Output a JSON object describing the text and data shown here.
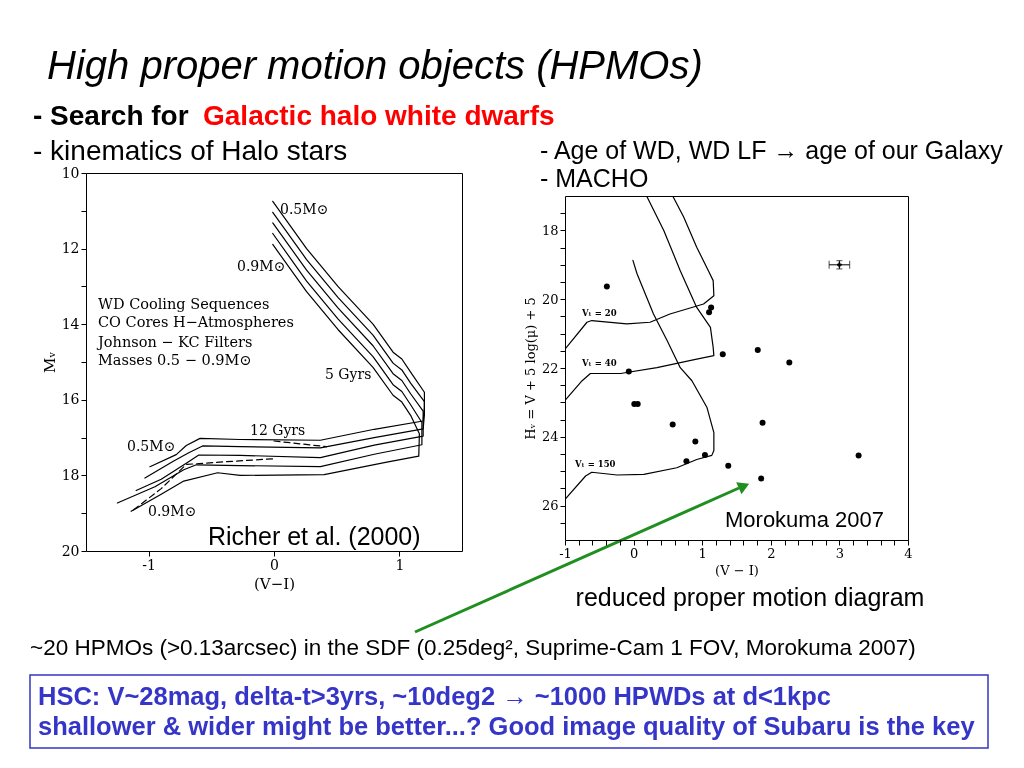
{
  "chart_data": [
    {
      "type": "other",
      "title": "High proper motion objects (HPMOs)",
      "annotations": [
        "- Search for",
        "Galactic halo white dwarfs",
        "~20 HPMOs (>0.13arcsec) in the SDF (0.25deg², Suprime-Cam 1 FOV, Morokuma 2007)",
        "HSC: V~28mag, delta-t>3yrs, ~10deg2 → ~1000 HPWDs at d<1kpc",
        "shallower & wider might be better...? Good image quality of Subaru is the key"
      ]
    },
    {
      "type": "line",
      "title": "- kinematics of Halo stars",
      "xlabel": "(V−I)",
      "ylabel": "Mᵥ",
      "xlim": [
        -1.5,
        1.5
      ],
      "xticks": [
        -1,
        0,
        1
      ],
      "ylim": [
        20,
        10
      ],
      "yticks": [
        10,
        {
          "value": 11,
          "label": null
        },
        12,
        {
          "value": 13,
          "label": null
        },
        14,
        {
          "value": 15,
          "label": null
        },
        16,
        {
          "value": 17,
          "label": null
        },
        18,
        {
          "value": 19,
          "label": null
        },
        20
      ],
      "line_style": "solid",
      "series": [
        {
          "color": "#000000",
          "x": [
            -0.01,
            0.26,
            0.51,
            0.79,
            0.95,
            1.02,
            1.09,
            1.2,
            1.2,
            1.19,
            0.8,
            0.37,
            -0.27,
            -0.59,
            -0.7,
            -0.78,
            -0.99
          ],
          "values": [
            10.75,
            12.0,
            13.0,
            14.0,
            14.74,
            14.92,
            15.27,
            15.8,
            16.2,
            16.56,
            16.78,
            17.07,
            17.05,
            17.02,
            17.21,
            17.45,
            17.77
          ]
        },
        {
          "color": "#000000",
          "x": [
            -0.01,
            0.26,
            0.51,
            0.79,
            0.95,
            1.02,
            1.09,
            1.2,
            1.2,
            1.19,
            0.8,
            0.37,
            -0.27,
            -0.57,
            -0.68,
            -0.8,
            -1.03
          ],
          "values": [
            11.04,
            12.29,
            13.29,
            14.29,
            15.03,
            15.21,
            15.56,
            16.05,
            16.4,
            16.77,
            17.0,
            17.27,
            17.24,
            17.22,
            17.4,
            17.62,
            18.07
          ]
        },
        {
          "color": "#000000",
          "x": [
            -0.01,
            0.26,
            0.51,
            0.79,
            0.95,
            1.02,
            1.09,
            1.19,
            1.19,
            0.8,
            0.37,
            -0.27,
            -0.6,
            -0.7,
            -0.9,
            -1.1
          ],
          "values": [
            11.32,
            12.57,
            13.57,
            14.57,
            15.31,
            15.49,
            15.84,
            16.3,
            16.96,
            17.2,
            17.53,
            17.47,
            17.46,
            17.68,
            18.1,
            18.4
          ]
        },
        {
          "color": "#000000",
          "x": [
            -0.01,
            0.26,
            0.51,
            0.79,
            0.95,
            1.02,
            1.09,
            1.18,
            1.18,
            0.8,
            0.37,
            -0.27,
            -0.62,
            -0.72,
            -0.95,
            -1.25
          ],
          "values": [
            11.6,
            12.86,
            13.86,
            14.86,
            15.6,
            15.78,
            16.13,
            16.6,
            17.19,
            17.44,
            17.77,
            17.74,
            17.72,
            17.85,
            18.3,
            18.73
          ]
        },
        {
          "color": "#000000",
          "x": [
            -0.01,
            0.26,
            0.51,
            0.79,
            0.95,
            1.02,
            1.09,
            1.16,
            1.155,
            0.9,
            0.4,
            -0.27,
            -0.45,
            -0.72,
            -0.9,
            -1.14
          ],
          "values": [
            11.89,
            13.14,
            14.14,
            15.14,
            15.88,
            16.06,
            16.41,
            16.9,
            17.49,
            17.65,
            17.98,
            18.0,
            17.93,
            18.15,
            18.5,
            18.95
          ]
        },
        {
          "color": "#000000",
          "line_style": "dashed",
          "x": [
            -1.12,
            -0.9,
            -0.7,
            -0.3,
            0.0
          ],
          "values": [
            18.91,
            18.35,
            17.71,
            17.62,
            17.56
          ]
        },
        {
          "color": "#000000",
          "line_style": "dashed",
          "x": [
            0.0,
            0.42
          ],
          "values": [
            17.09,
            17.24
          ]
        }
      ],
      "annotations": [
        "0.5M⊙",
        "0.9M⊙",
        "WD Cooling Sequences",
        "CO Cores H−Atmospheres",
        "Johnson − KC Filters",
        "Masses 0.5 − 0.9M⊙",
        "5 Gyrs",
        "12 Gyrs",
        "0.5M⊙",
        "0.9M⊙",
        "Richer et al. (2000)"
      ]
    },
    {
      "type": "scatter",
      "title": "- Age of WD, WD LF → age of our Galaxy",
      "subtitle": "- MACHO",
      "xlabel": "(V − I)",
      "ylabel": "Hᵥ = V + 5 log(μ) + 5",
      "xlim": [
        -1,
        4
      ],
      "xticks": [
        -1,
        {
          "value": -0.8,
          "label": null
        },
        {
          "value": -0.6,
          "label": null
        },
        {
          "value": -0.4,
          "label": null
        },
        {
          "value": -0.2,
          "label": null
        },
        0,
        {
          "value": 0.2,
          "label": null
        },
        {
          "value": 0.4,
          "label": null
        },
        {
          "value": 0.6,
          "label": null
        },
        {
          "value": 0.8,
          "label": null
        },
        1,
        {
          "value": 1.2,
          "label": null
        },
        {
          "value": 1.4,
          "label": null
        },
        {
          "value": 1.6,
          "label": null
        },
        {
          "value": 1.8,
          "label": null
        },
        2,
        {
          "value": 2.2,
          "label": null
        },
        {
          "value": 2.4,
          "label": null
        },
        {
          "value": 2.6,
          "label": null
        },
        {
          "value": 2.8,
          "label": null
        },
        3,
        {
          "value": 3.2,
          "label": null
        },
        {
          "value": 3.4,
          "label": null
        },
        {
          "value": 3.6,
          "label": null
        },
        {
          "value": 3.8,
          "label": null
        },
        4
      ],
      "ylim": [
        27,
        17
      ],
      "yticks": [
        {
          "value": 17.5,
          "label": null
        },
        18,
        {
          "value": 18.5,
          "label": null
        },
        {
          "value": 19,
          "label": null
        },
        {
          "value": 19.5,
          "label": null
        },
        20,
        {
          "value": 20.5,
          "label": null
        },
        {
          "value": 21,
          "label": null
        },
        {
          "value": 21.5,
          "label": null
        },
        22,
        {
          "value": 22.5,
          "label": null
        },
        {
          "value": 23,
          "label": null
        },
        {
          "value": 23.5,
          "label": null
        },
        24,
        {
          "value": 24.5,
          "label": null
        },
        {
          "value": 25,
          "label": null
        },
        {
          "value": 25.5,
          "label": null
        },
        26,
        {
          "value": 26.5,
          "label": null
        }
      ],
      "series": [
        {
          "color": "#000000",
          "marker": "circle",
          "x": [
            -0.39,
            1.13,
            1.1,
            1.3,
            1.81,
            2.27,
            -0.07,
            0.01,
            0.06,
            0.57,
            1.88,
            0.9,
            1.04,
            0.77,
            3.28,
            1.38,
            1.86
          ],
          "values": [
            19.63,
            20.24,
            20.38,
            21.6,
            21.48,
            21.84,
            22.1,
            23.05,
            23.05,
            23.64,
            23.59,
            24.14,
            24.53,
            24.71,
            24.54,
            24.84,
            25.21
          ]
        },
        {
          "type": "line",
          "color": "#000000",
          "x": [
            0.57,
            0.73,
            0.92,
            1.09,
            1.16,
            1.17,
            1.02,
            0.53,
            0.24,
            -0.1,
            -0.61,
            -0.68,
            -1.0
          ],
          "values": [
            17.0,
            17.61,
            18.49,
            19.17,
            19.46,
            19.9,
            20.14,
            20.43,
            20.67,
            20.72,
            20.62,
            20.67,
            21.45
          ]
        },
        {
          "type": "line",
          "color": "#000000",
          "x": [
            0.19,
            0.44,
            0.68,
            0.92,
            1.12,
            1.16,
            1.17,
            0.92,
            0.34,
            -0.19,
            -0.63,
            -0.75,
            -1.0
          ],
          "values": [
            17.0,
            18.0,
            19.17,
            20.24,
            20.82,
            21.4,
            21.64,
            21.74,
            21.99,
            22.16,
            22.16,
            22.37,
            22.94
          ]
        },
        {
          "type": "line",
          "color": "#000000",
          "x": [
            -0.01,
            0.05,
            0.29,
            0.49,
            0.68,
            0.85,
            1.07,
            1.17,
            1.17,
            1.14,
            0.92,
            0.63,
            0.15,
            -0.24,
            -0.61,
            -0.7,
            -1.0
          ],
          "values": [
            18.87,
            19.26,
            20.43,
            21.21,
            21.99,
            22.37,
            23.15,
            23.88,
            24.4,
            24.54,
            24.66,
            24.9,
            25.09,
            25.11,
            25.03,
            25.14,
            25.82
          ]
        },
        {
          "color": "#000000",
          "marker": "cross",
          "x": [
            3.0
          ],
          "values": [
            19.0
          ],
          "errors": [
            0.12
          ],
          "xerrors": [
            0.15
          ]
        }
      ],
      "annotations": [
        "Vₜ = 20",
        "Vₜ = 40",
        "Vₜ = 150",
        "Morokuma 2007",
        "reduced proper motion diagram"
      ]
    }
  ]
}
